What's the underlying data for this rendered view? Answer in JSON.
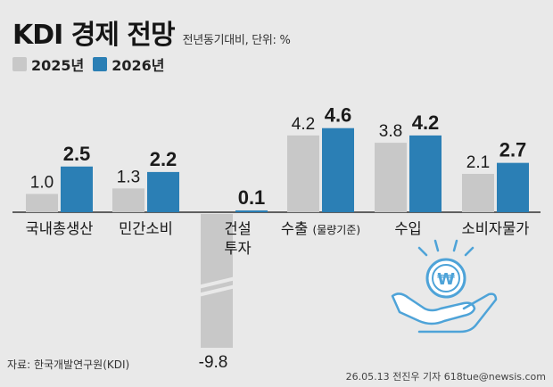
{
  "title": "KDI 경제 전망",
  "subtitle": "전년동기대비, 단위: %",
  "source": "자료: 한국개발연구원(KDI)",
  "credit": "26.05.13 전진우 기자 618tue@newsis.com",
  "colors": {
    "s2025": "#c8c8c8",
    "s2026": "#2b7fb5",
    "background": "#e9e9e9",
    "icon": "#4ea3d8"
  },
  "chart_data": {
    "type": "bar",
    "categories": [
      "국내총생산",
      "민간소비",
      "건설투자",
      "수출(물량기준)",
      "수입",
      "소비자물가"
    ],
    "category_labels": [
      {
        "main": "국내총생산"
      },
      {
        "main": "민간소비"
      },
      {
        "main": "건설",
        "main2": "투자"
      },
      {
        "main": "수출",
        "small": "(물량기준)"
      },
      {
        "main": "수입"
      },
      {
        "main": "소비자물가"
      }
    ],
    "series": [
      {
        "name": "2025년",
        "values": [
          1.0,
          1.3,
          -9.8,
          4.2,
          3.8,
          2.1
        ],
        "labels": [
          "1.0",
          "1.3",
          "-9.8",
          "4.2",
          "3.8",
          "2.1"
        ]
      },
      {
        "name": "2026년",
        "values": [
          2.5,
          2.2,
          0.1,
          4.6,
          4.2,
          2.7
        ],
        "labels": [
          "2.5",
          "2.2",
          "0.1",
          "4.6",
          "4.2",
          "2.7"
        ]
      }
    ],
    "axis_break": true,
    "legend": "top-left"
  }
}
